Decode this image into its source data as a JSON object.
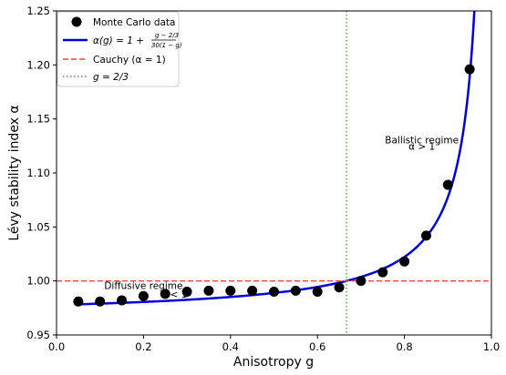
{
  "chart_data": {
    "type": "scatter",
    "xlabel": "Anisotropy g",
    "ylabel": "Lévy stability index α",
    "xlim": [
      0.0,
      1.0
    ],
    "ylim": [
      0.95,
      1.25
    ],
    "x_ticks": [
      "0.0",
      "0.2",
      "0.4",
      "0.6",
      "0.8",
      "1.0"
    ],
    "y_ticks": [
      "0.95",
      "1.00",
      "1.05",
      "1.10",
      "1.15",
      "1.20",
      "1.25"
    ],
    "grid": false,
    "legend_position": "top-left",
    "series": [
      {
        "name": "Monte Carlo data",
        "kind": "scatter",
        "color": "#000000",
        "x": [
          0.05,
          0.1,
          0.15,
          0.2,
          0.25,
          0.3,
          0.35,
          0.4,
          0.45,
          0.5,
          0.55,
          0.6,
          0.65,
          0.7,
          0.75,
          0.8,
          0.85,
          0.9,
          0.95
        ],
        "y": [
          0.981,
          0.981,
          0.982,
          0.986,
          0.988,
          0.99,
          0.991,
          0.991,
          0.991,
          0.99,
          0.991,
          0.99,
          0.994,
          1.0,
          1.008,
          1.018,
          1.042,
          1.089,
          1.196
        ]
      },
      {
        "name": "α(g) = 1 + (g − 2/3) / (30(1 − g))",
        "kind": "line",
        "color": "#0000dd",
        "formula": "1 + (g - 2/3) / (30 * (1 - g))",
        "x_range": [
          0.05,
          0.98
        ]
      },
      {
        "name": "Cauchy (α = 1)",
        "kind": "hline",
        "color": "#ff4444",
        "y": 1.0
      },
      {
        "name": "g = 2/3",
        "kind": "vline",
        "color": "#33aa33",
        "x": 0.6667
      }
    ],
    "annotations": [
      {
        "text": "Diffusive regime",
        "x": 0.2,
        "y": 0.9925
      },
      {
        "text": "α < 1",
        "x": 0.27,
        "y": 0.9845
      },
      {
        "text": "Ballistic regime",
        "x": 0.84,
        "y": 1.1275
      },
      {
        "text": "α > 1",
        "x": 0.84,
        "y": 1.1215
      }
    ]
  }
}
